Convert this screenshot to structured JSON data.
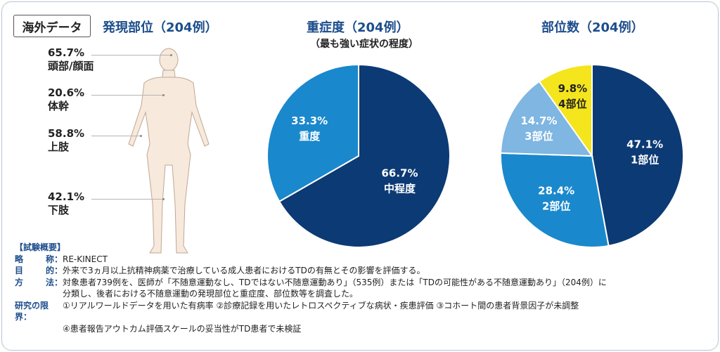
{
  "badge": "海外データ",
  "body_sites": {
    "title": "発現部位（204例）",
    "items": [
      {
        "value": "65.7%",
        "label": "頭部/顔面"
      },
      {
        "value": "20.6%",
        "label": "体幹"
      },
      {
        "value": "58.8%",
        "label": "上肢"
      },
      {
        "value": "42.1%",
        "label": "下肢"
      }
    ]
  },
  "colors": {
    "dark_navy": "#0c3a74",
    "blue": "#1a88cc",
    "light_blue": "#7fb6e2",
    "yellow": "#f4e51c",
    "title_blue": "#1c4d8c"
  },
  "chart_data": [
    {
      "type": "pie",
      "title": "重症度（204例）",
      "subtitle": "（最も強い症状の程度）",
      "slices": [
        {
          "label": "中程度",
          "value": 66.7,
          "display": "66.7%",
          "color": "#0c3a74"
        },
        {
          "label": "重度",
          "value": 33.3,
          "display": "33.3%",
          "color": "#1a88cc"
        }
      ]
    },
    {
      "type": "pie",
      "title": "部位数（204例）",
      "slices": [
        {
          "label": "1部位",
          "value": 47.1,
          "display": "47.1%",
          "color": "#0c3a74"
        },
        {
          "label": "2部位",
          "value": 28.4,
          "display": "28.4%",
          "color": "#1a88cc"
        },
        {
          "label": "3部位",
          "value": 14.7,
          "display": "14.7%",
          "color": "#7fb6e2"
        },
        {
          "label": "4部位",
          "value": 9.8,
          "display": "9.8%",
          "color": "#f4e51c"
        }
      ]
    }
  ],
  "summary": {
    "heading": "【試験概要】",
    "rows": [
      {
        "k1": "略",
        "k2": "称：",
        "text": "RE-KINECT"
      },
      {
        "k1": "目",
        "k2": "的：",
        "text": "外来で3ヵ月以上抗精神病薬で治療している成人患者におけるTDの有無とその影響を評価する。"
      },
      {
        "k1": "方",
        "k2": "法：",
        "text": "対象患者739例を、医師が「不随意運動なし、TDではない不随意運動あり」（535例）または「TDの可能性がある不随意運動あり」（204例）に"
      },
      {
        "k1": "",
        "k2": "",
        "text": "分類し、後者における不随意運動の発現部位と重症度、部位数等を調査した。"
      },
      {
        "k1": "研究の限界：",
        "k2": "",
        "text": "①リアルワールドデータを用いた有病率 ②診療記録を用いたレトロスペクティブな病状・疾患評価 ③コホート間の患者背景因子が未調整"
      },
      {
        "k1": "",
        "k2": "",
        "text": "④患者報告アウトカム評価スケールの妥当性がTD患者で未検証"
      }
    ]
  }
}
